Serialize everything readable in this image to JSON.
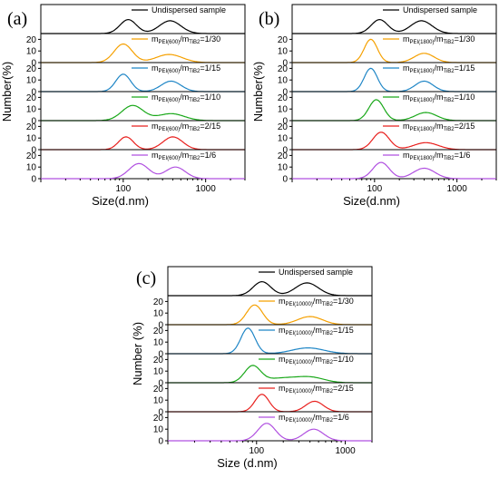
{
  "chart_data": [
    {
      "type": "line",
      "panel_label": "(a)",
      "xlabel": "Size(d.nm)",
      "ylabel": "Number(%)",
      "x_scale": "log",
      "xlim": [
        10,
        3000
      ],
      "x_ticks": [
        100,
        1000
      ],
      "x_tick_labels": [
        "100",
        "1000"
      ],
      "y_ticks": [
        0,
        10,
        20
      ],
      "y_tick_labels": [
        "0",
        "10",
        "20"
      ],
      "ylim": [
        0,
        25
      ],
      "series": [
        {
          "name": "Undispersed sample",
          "label_main": "Undispersed sample",
          "label_sub": "",
          "label_tail": "",
          "color": "#000000",
          "peaks": [
            {
              "center": 115,
              "height": 12,
              "width": 0.1
            },
            {
              "center": 370,
              "height": 11,
              "width": 0.13
            }
          ]
        },
        {
          "name": "mPEI(600)/mTiB2=1/30",
          "label_main": "m",
          "label_sub": "PEI(600)",
          "label_mid": "/m",
          "label_sub2": "TiB2",
          "label_tail": "=1/30",
          "color": "#f5a000",
          "peaks": [
            {
              "center": 100,
              "height": 16,
              "width": 0.11
            },
            {
              "center": 360,
              "height": 7,
              "width": 0.16
            }
          ]
        },
        {
          "name": "mPEI(600)/mTiB2=1/15",
          "label_main": "m",
          "label_sub": "PEI(600)",
          "label_mid": "/m",
          "label_sub2": "TiB2",
          "label_tail": "=1/15",
          "color": "#1f86c6",
          "peaks": [
            {
              "center": 100,
              "height": 15,
              "width": 0.09
            },
            {
              "center": 380,
              "height": 9,
              "width": 0.12
            }
          ]
        },
        {
          "name": "mPEI(600)/mTiB2=1/10",
          "label_main": "m",
          "label_sub": "PEI(600)",
          "label_mid": "/m",
          "label_sub2": "TiB2",
          "label_tail": "=1/10",
          "color": "#1aa81a",
          "peaks": [
            {
              "center": 130,
              "height": 13,
              "width": 0.13
            },
            {
              "center": 380,
              "height": 6,
              "width": 0.16
            }
          ]
        },
        {
          "name": "mPEI(600)/mTiB2=2/15",
          "label_main": "m",
          "label_sub": "PEI(600)",
          "label_mid": "/m",
          "label_sub2": "TiB2",
          "label_tail": "=2/15",
          "color": "#e8201e",
          "peaks": [
            {
              "center": 108,
              "height": 11,
              "width": 0.09
            },
            {
              "center": 400,
              "height": 11,
              "width": 0.12
            }
          ]
        },
        {
          "name": "mPEI(600)/mTiB2=1/6",
          "label_main": "m",
          "label_sub": "PEI(600)",
          "label_mid": "/m",
          "label_sub2": "TiB2",
          "label_tail": "=1/6",
          "color": "#b050e0",
          "peaks": [
            {
              "center": 155,
              "height": 13,
              "width": 0.12
            },
            {
              "center": 430,
              "height": 10,
              "width": 0.12
            }
          ]
        }
      ]
    },
    {
      "type": "line",
      "panel_label": "(b)",
      "xlabel": "Size(d.nm)",
      "ylabel": "Number(%)",
      "x_scale": "log",
      "xlim": [
        10,
        3000
      ],
      "x_ticks": [
        100,
        1000
      ],
      "x_tick_labels": [
        "100",
        "1000"
      ],
      "y_ticks": [
        0,
        10,
        20
      ],
      "y_tick_labels": [
        "0",
        "10",
        "20"
      ],
      "ylim": [
        0,
        25
      ],
      "series": [
        {
          "name": "Undispersed sample",
          "label_main": "Undispersed sample",
          "label_sub": "",
          "label_tail": "",
          "color": "#000000",
          "peaks": [
            {
              "center": 115,
              "height": 12,
              "width": 0.1
            },
            {
              "center": 370,
              "height": 11,
              "width": 0.13
            }
          ]
        },
        {
          "name": "mPEI(1800)/mTiB2=1/30",
          "label_main": "m",
          "label_sub": "PEI(1800)",
          "label_mid": "/m",
          "label_sub2": "TiB2",
          "label_tail": "=1/30",
          "color": "#f5a000",
          "peaks": [
            {
              "center": 90,
              "height": 20,
              "width": 0.08
            },
            {
              "center": 400,
              "height": 8,
              "width": 0.12
            }
          ]
        },
        {
          "name": "mPEI(1800)/mTiB2=1/15",
          "label_main": "m",
          "label_sub": "PEI(1800)",
          "label_mid": "/m",
          "label_sub2": "TiB2",
          "label_tail": "=1/15",
          "color": "#1f86c6",
          "peaks": [
            {
              "center": 90,
              "height": 20,
              "width": 0.08
            },
            {
              "center": 400,
              "height": 9,
              "width": 0.11
            }
          ]
        },
        {
          "name": "mPEI(1800)/mTiB2=1/10",
          "label_main": "m",
          "label_sub": "PEI(1800)",
          "label_mid": "/m",
          "label_sub2": "TiB2",
          "label_tail": "=1/10",
          "color": "#1aa81a",
          "peaks": [
            {
              "center": 105,
              "height": 18,
              "width": 0.09
            },
            {
              "center": 420,
              "height": 7,
              "width": 0.13
            }
          ]
        },
        {
          "name": "mPEI(1800)/mTiB2=2/15",
          "label_main": "m",
          "label_sub": "PEI(1800)",
          "label_mid": "/m",
          "label_sub2": "TiB2",
          "label_tail": "=2/15",
          "color": "#e8201e",
          "peaks": [
            {
              "center": 120,
              "height": 15,
              "width": 0.1
            },
            {
              "center": 420,
              "height": 6,
              "width": 0.15
            }
          ]
        },
        {
          "name": "mPEI(1800)/mTiB2=1/6",
          "label_main": "m",
          "label_sub": "PEI(1800)",
          "label_mid": "/m",
          "label_sub2": "TiB2",
          "label_tail": "=1/6",
          "color": "#b050e0",
          "peaks": [
            {
              "center": 120,
              "height": 14,
              "width": 0.1
            },
            {
              "center": 400,
              "height": 9,
              "width": 0.13
            }
          ]
        }
      ]
    },
    {
      "type": "line",
      "panel_label": "(c)",
      "xlabel": "Size (d.nm)",
      "ylabel": "Number (%)",
      "x_scale": "log",
      "xlim": [
        10,
        2000
      ],
      "x_ticks": [
        100,
        1000
      ],
      "x_tick_labels": [
        "100",
        "1000"
      ],
      "y_ticks": [
        0,
        10,
        20
      ],
      "y_tick_labels": [
        "0",
        "10",
        "20"
      ],
      "ylim": [
        0,
        25
      ],
      "series": [
        {
          "name": "Undispersed sample",
          "label_main": "Undispersed sample",
          "label_sub": "",
          "label_tail": "",
          "color": "#000000",
          "peaks": [
            {
              "center": 115,
              "height": 12,
              "width": 0.1
            },
            {
              "center": 370,
              "height": 11,
              "width": 0.13
            }
          ]
        },
        {
          "name": "mPEI(10000)/mTiB2=1/30",
          "label_main": "m",
          "label_sub": "PEI(10000)",
          "label_mid": "/m",
          "label_sub2": "TiB2",
          "label_tail": "=1/30",
          "color": "#f5a000",
          "peaks": [
            {
              "center": 95,
              "height": 17,
              "width": 0.09
            },
            {
              "center": 400,
              "height": 7,
              "width": 0.14
            }
          ]
        },
        {
          "name": "mPEI(10000)/mTiB2=1/15",
          "label_main": "m",
          "label_sub": "PEI(10000)",
          "label_mid": "/m",
          "label_sub2": "TiB2",
          "label_tail": "=1/15",
          "color": "#1f86c6",
          "peaks": [
            {
              "center": 80,
              "height": 22,
              "width": 0.08
            },
            {
              "center": 380,
              "height": 5,
              "width": 0.18
            }
          ]
        },
        {
          "name": "mPEI(10000)/mTiB2=1/10",
          "label_main": "m",
          "label_sub": "PEI(10000)",
          "label_mid": "/m",
          "label_sub2": "TiB2",
          "label_tail": "=1/10",
          "color": "#1aa81a",
          "peaks": [
            {
              "center": 90,
              "height": 14,
              "width": 0.09
            },
            {
              "center": 200,
              "height": 4,
              "width": 0.2
            },
            {
              "center": 420,
              "height": 4,
              "width": 0.15
            }
          ]
        },
        {
          "name": "mPEI(10000)/mTiB2=2/15",
          "label_main": "m",
          "label_sub": "PEI(10000)",
          "label_mid": "/m",
          "label_sub2": "TiB2",
          "label_tail": "=2/15",
          "color": "#e8201e",
          "peaks": [
            {
              "center": 115,
              "height": 15,
              "width": 0.08
            },
            {
              "center": 450,
              "height": 9,
              "width": 0.1
            }
          ]
        },
        {
          "name": "mPEI(10000)/mTiB2=1/6",
          "label_main": "m",
          "label_sub": "PEI(10000)",
          "label_mid": "/m",
          "label_sub2": "TiB2",
          "label_tail": "=1/6",
          "color": "#b050e0",
          "peaks": [
            {
              "center": 130,
              "height": 15,
              "width": 0.1
            },
            {
              "center": 440,
              "height": 10,
              "width": 0.11
            }
          ]
        }
      ]
    }
  ]
}
